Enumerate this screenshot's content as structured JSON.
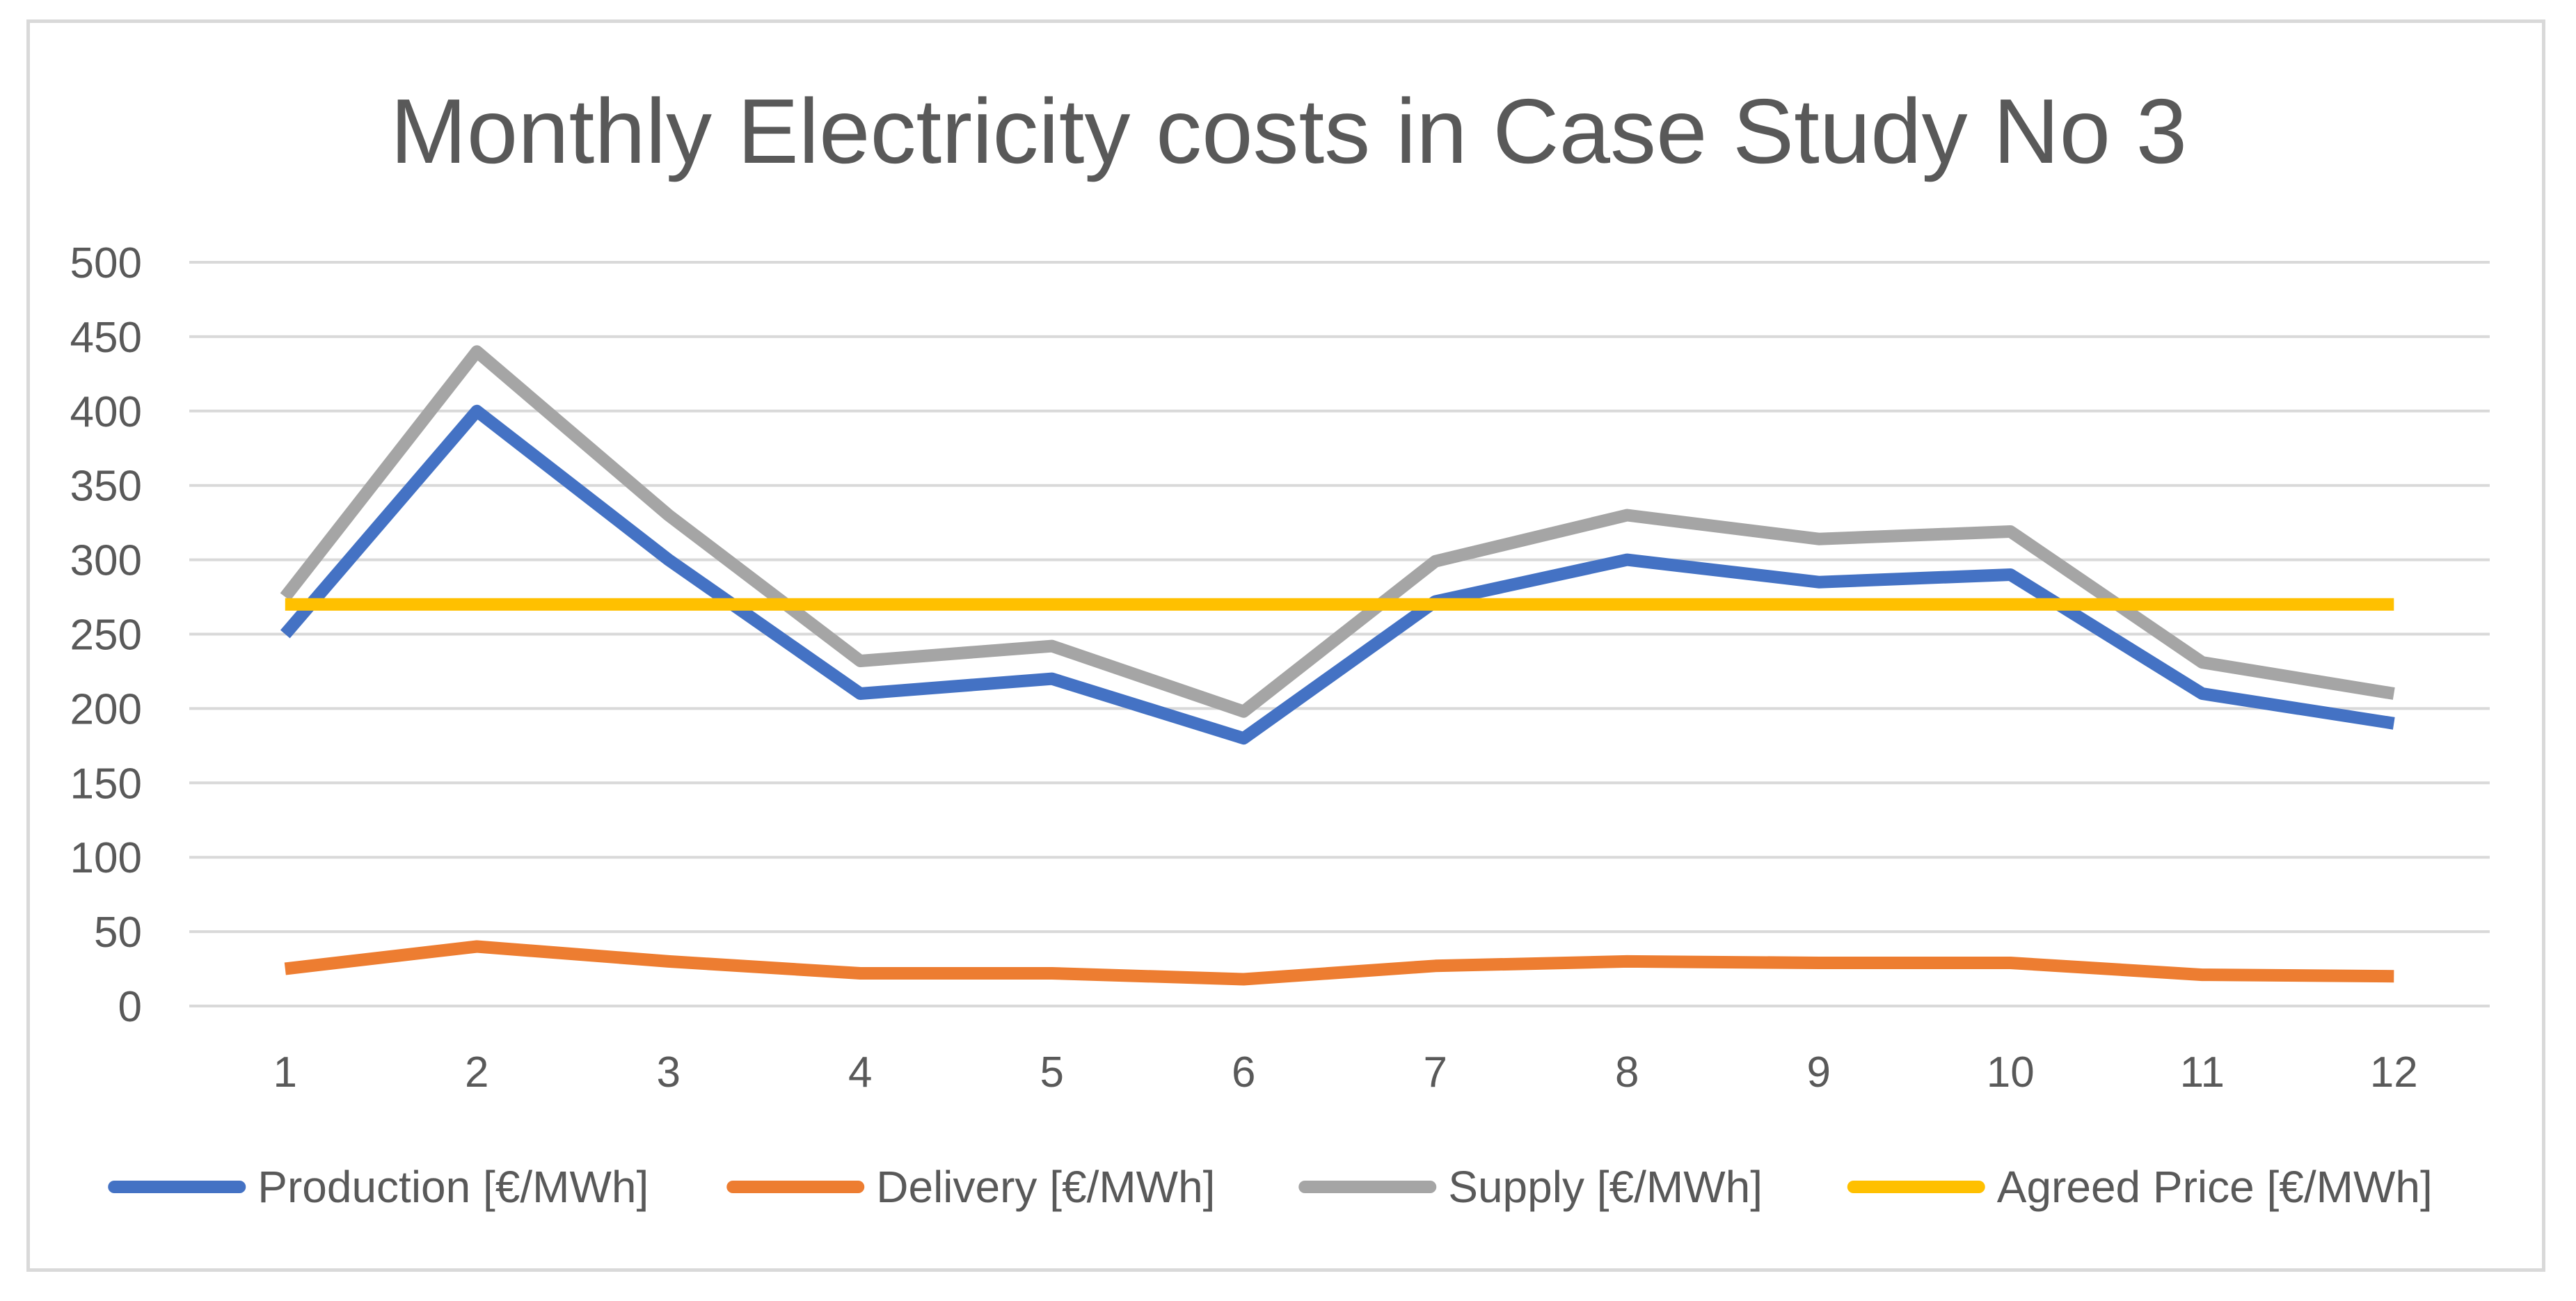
{
  "chart_data": {
    "type": "line",
    "title": "Monthly Electricity costs in Case Study No 3",
    "xlabel": "",
    "ylabel": "",
    "categories": [
      "1",
      "2",
      "3",
      "4",
      "5",
      "6",
      "7",
      "8",
      "9",
      "10",
      "11",
      "12"
    ],
    "ylim": [
      0,
      500
    ],
    "yticks": [
      "0",
      "50",
      "100",
      "150",
      "200",
      "250",
      "300",
      "350",
      "400",
      "450",
      "500"
    ],
    "grid": true,
    "legend_position": "bottom",
    "series": [
      {
        "name": "Production [€/MWh]",
        "color": "#4472C4",
        "values": [
          250,
          400,
          300,
          210,
          220,
          180,
          272,
          300,
          285,
          290,
          210,
          190
        ]
      },
      {
        "name": "Delivery [€/MWh]",
        "color": "#ED7D31",
        "values": [
          25,
          40,
          30,
          22,
          22,
          18,
          27,
          30,
          29,
          29,
          21,
          20
        ]
      },
      {
        "name": "Supply  [€/MWh]",
        "color": "#A5A5A5",
        "values": [
          275,
          440,
          330,
          232,
          242,
          198,
          299,
          330,
          314,
          319,
          231,
          210
        ]
      },
      {
        "name": "Agreed Price [€/MWh]",
        "color": "#FFC000",
        "values": [
          270,
          270,
          270,
          270,
          270,
          270,
          270,
          270,
          270,
          270,
          270,
          270
        ]
      }
    ]
  }
}
